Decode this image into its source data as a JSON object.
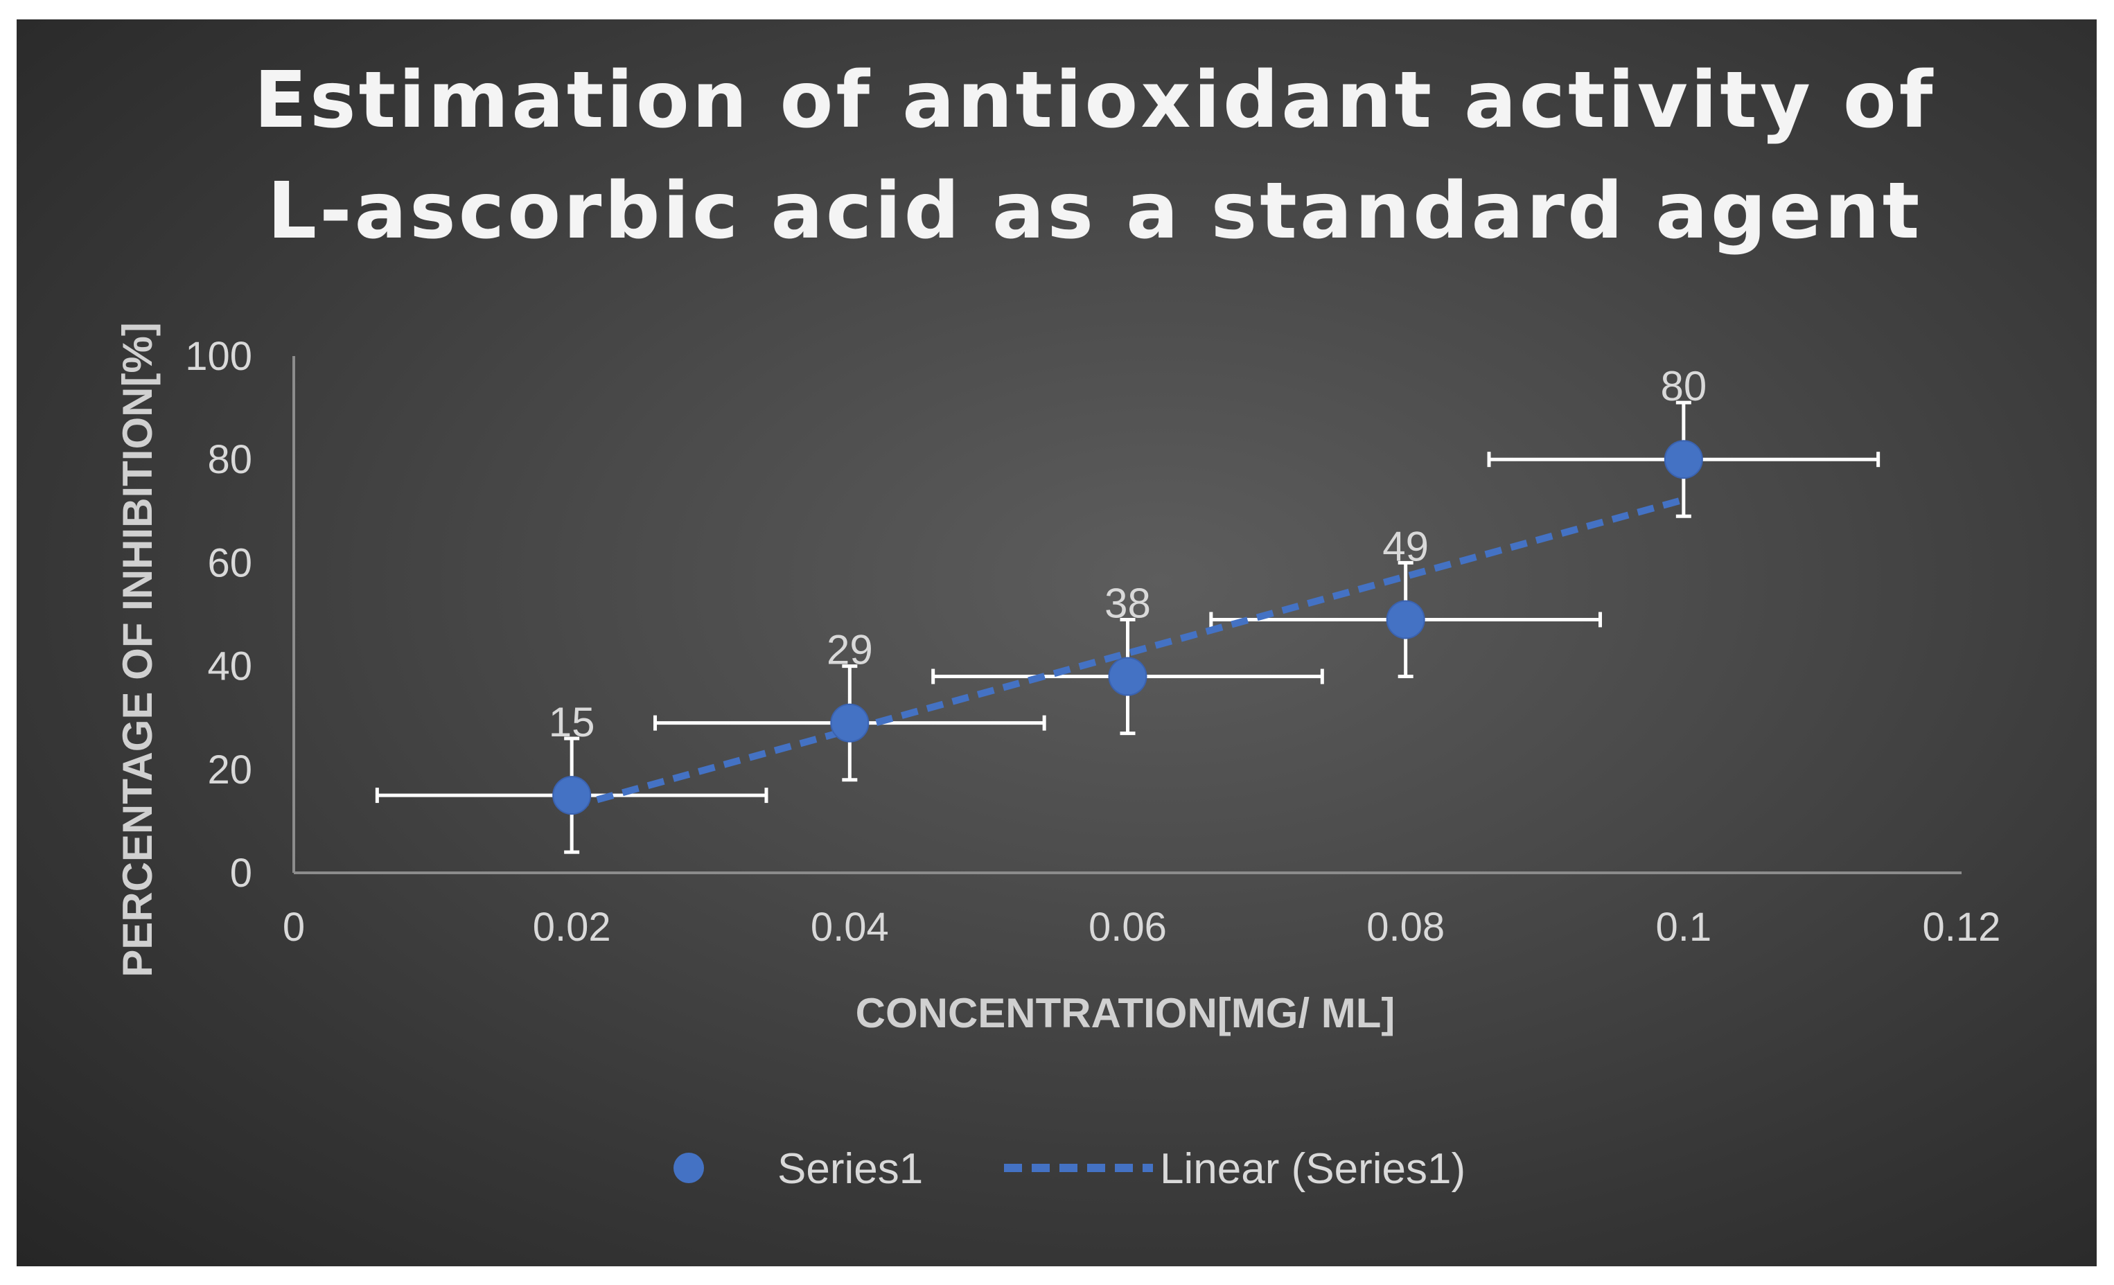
{
  "chart_data": {
    "type": "scatter",
    "title_lines": [
      "Estimation of antioxidant activity of",
      "L-ascorbic acid as a standard agent"
    ],
    "xlabel": "CONCENTRATION[MG/ ML]",
    "ylabel": "PERCENTAGE OF INHIBITION[%]",
    "xlim": [
      0,
      0.12
    ],
    "ylim": [
      0,
      100
    ],
    "x_ticks": [
      "0",
      "0.02",
      "0.04",
      "0.06",
      "0.08",
      "0.1",
      "0.12"
    ],
    "y_ticks": [
      "0",
      "20",
      "40",
      "60",
      "80",
      "100"
    ],
    "grid": false,
    "series": [
      {
        "name": "Series1",
        "color": "#4472c4",
        "x": [
          0.02,
          0.04,
          0.06,
          0.08,
          0.1
        ],
        "y": [
          15,
          29,
          38,
          49,
          80
        ],
        "data_labels": [
          "15",
          "29",
          "38",
          "49",
          "80"
        ],
        "x_error": 0.014,
        "y_error": 11
      }
    ],
    "trendline": {
      "name": "Linear (Series1)",
      "type": "linear",
      "style": "dashed",
      "color": "#4472c4",
      "x_range": [
        0.02,
        0.1
      ],
      "y_start": 12.8,
      "y_end": 72.2
    },
    "legend_position": "bottom"
  }
}
